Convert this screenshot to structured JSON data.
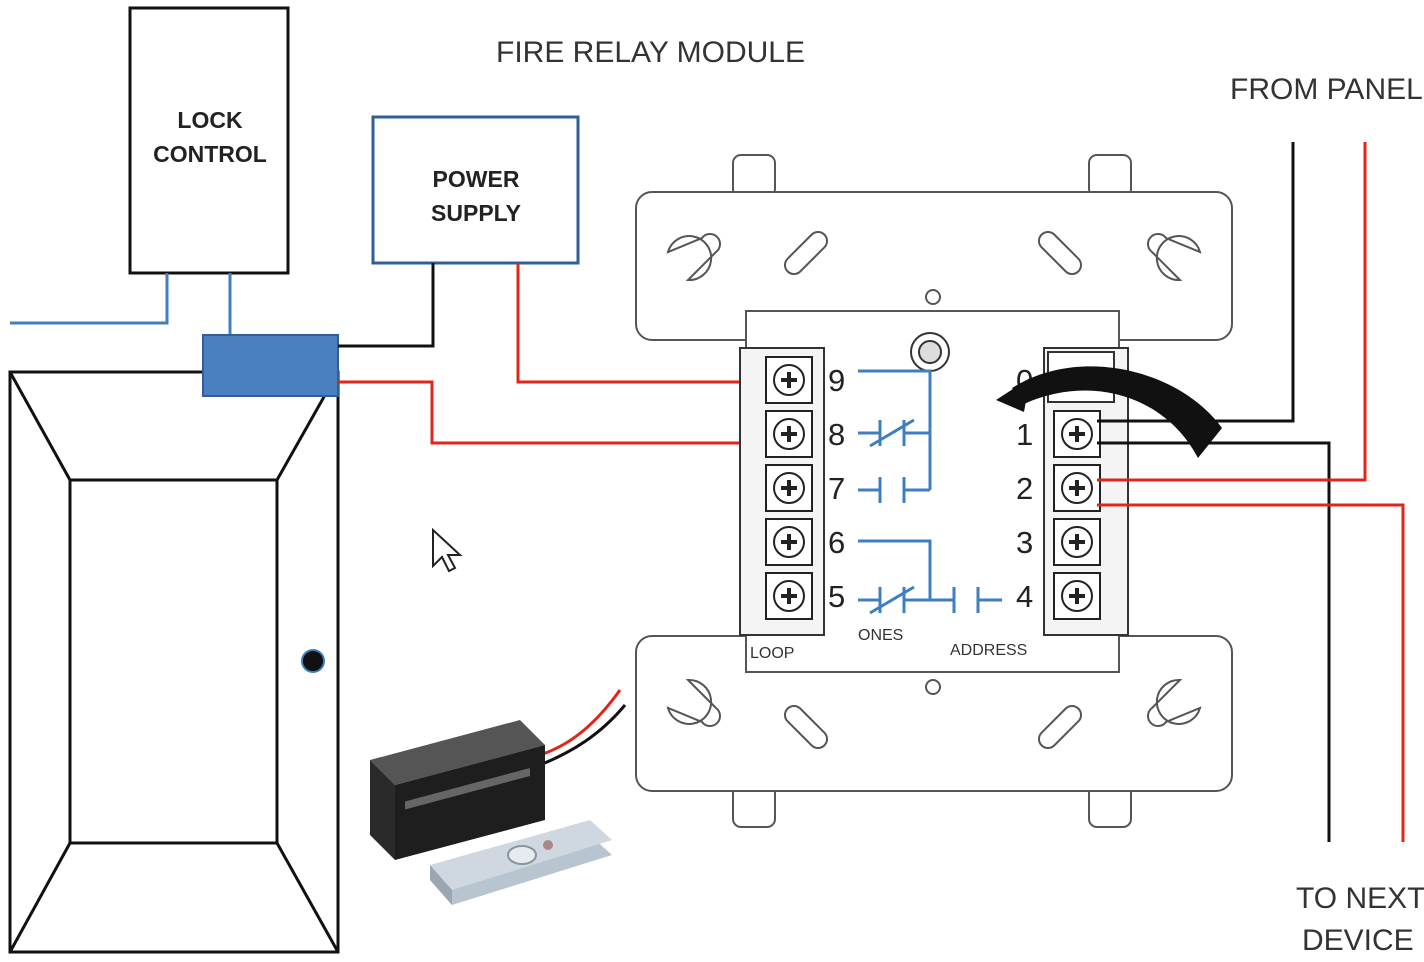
{
  "diagram": {
    "title": "FIRE RELAY MODULE",
    "from_panel": "FROM PANEL",
    "to_next_device": [
      "TO NEXT",
      "DEVICE"
    ],
    "lock_control": [
      "LOCK",
      "CONTROL"
    ],
    "power_supply": [
      "POWER",
      "SUPPLY"
    ],
    "left_terminals": [
      "9",
      "8",
      "7",
      "6",
      "5"
    ],
    "right_terminals": [
      "0",
      "1",
      "2",
      "3",
      "4"
    ],
    "loop_label": "LOOP",
    "ones_label": "ONES",
    "address_label": "ADDRESS",
    "colors": {
      "wire_red": "#e0261b",
      "wire_black": "#111111",
      "wire_blue": "#3f7ec0",
      "box_blue": "#2f5f96",
      "junction_fill": "#4a7fc0"
    }
  }
}
